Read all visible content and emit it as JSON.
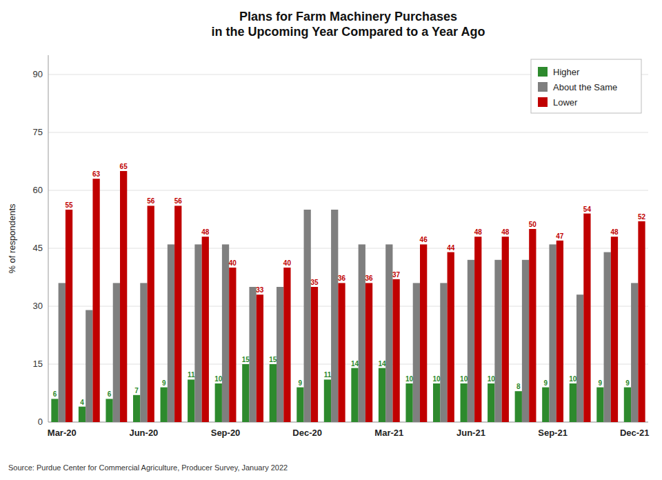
{
  "chart_data": {
    "type": "bar",
    "title": "Plans for Farm Machinery Purchases\nin the Upcoming Year Compared to a Year Ago",
    "ylabel": "% of respondents",
    "annotations": [
      "Source: Purdue Center for Commercial Agriculture, Producer Survey, January 2022"
    ],
    "categories": [
      "Mar-20",
      null,
      null,
      "Jun-20",
      null,
      null,
      "Sep-20",
      null,
      null,
      "Dec-20",
      null,
      null,
      "Mar-21",
      null,
      null,
      "Jun-21",
      null,
      null,
      "Sep-21",
      null,
      null,
      "Dec-21"
    ],
    "series": [
      {
        "name": "Higher",
        "color": "#2d8a2d",
        "data_labels": true,
        "values": [
          6,
          4,
          6,
          7,
          9,
          11,
          10,
          15,
          15,
          9,
          11,
          14,
          14,
          10,
          10,
          10,
          10,
          8,
          9,
          10,
          9,
          9
        ]
      },
      {
        "name": "About the Same",
        "color": "#7f7f7f",
        "data_labels": false,
        "values": [
          36,
          29,
          36,
          36,
          46,
          46,
          46,
          35,
          35,
          55,
          55,
          46,
          46,
          36,
          36,
          42,
          42,
          42,
          46,
          33,
          44,
          36
        ]
      },
      {
        "name": "Lower",
        "color": "#c00000",
        "data_labels": true,
        "values": [
          55,
          63,
          65,
          56,
          56,
          48,
          40,
          33,
          40,
          35,
          36,
          36,
          37,
          46,
          44,
          48,
          48,
          50,
          47,
          54,
          48,
          52
        ]
      }
    ],
    "ylim": [
      0,
      95
    ],
    "yticks": [
      0,
      15,
      30,
      45,
      60,
      75,
      90
    ],
    "grid": true,
    "legend": "upper right"
  }
}
